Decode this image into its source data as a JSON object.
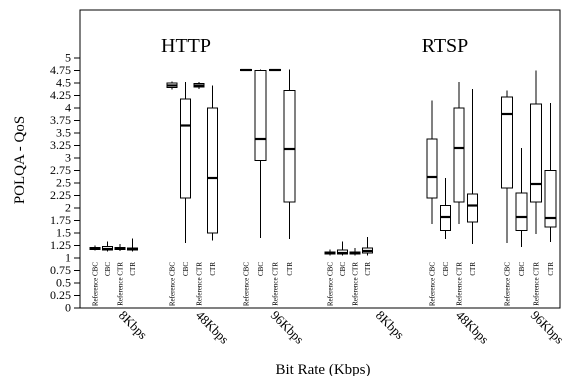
{
  "chart_data": {
    "type": "box",
    "ylabel": "POLQA - QoS",
    "xlabel": "Bit Rate (Kbps)",
    "ylim": [
      0,
      5
    ],
    "yticks": [
      "0",
      "0.25",
      "0.5",
      "0.75",
      "1",
      "1.25",
      "1.5",
      "1.75",
      "2",
      "2.25",
      "2.5",
      "2.75",
      "3",
      "3.25",
      "3.5",
      "3.75",
      "4",
      "4.25",
      "4.5",
      "4.75",
      "5"
    ],
    "panels": [
      "HTTP",
      "RTSP"
    ],
    "bitrate_labels": [
      "8Kbps",
      "48Kbps",
      "96Kbps"
    ],
    "series": [
      "Reference CBC",
      "CBC",
      "Reference CTR",
      "CTR"
    ],
    "boxes": [
      {
        "panel": "HTTP",
        "bitrate": "8Kbps",
        "series": "Reference CBC",
        "whisker_low": 1.15,
        "q1": 1.17,
        "median": 1.19,
        "q3": 1.21,
        "whisker_high": 1.25
      },
      {
        "panel": "HTTP",
        "bitrate": "8Kbps",
        "series": "CBC",
        "whisker_low": 1.13,
        "q1": 1.16,
        "median": 1.18,
        "q3": 1.23,
        "whisker_high": 1.33
      },
      {
        "panel": "HTTP",
        "bitrate": "8Kbps",
        "series": "Reference CTR",
        "whisker_low": 1.14,
        "q1": 1.17,
        "median": 1.19,
        "q3": 1.21,
        "whisker_high": 1.28
      },
      {
        "panel": "HTTP",
        "bitrate": "8Kbps",
        "series": "CTR",
        "whisker_low": 1.13,
        "q1": 1.16,
        "median": 1.18,
        "q3": 1.2,
        "whisker_high": 1.39
      },
      {
        "panel": "HTTP",
        "bitrate": "48Kbps",
        "series": "Reference CBC",
        "whisker_low": 4.37,
        "q1": 4.41,
        "median": 4.45,
        "q3": 4.5,
        "whisker_high": 4.53
      },
      {
        "panel": "HTTP",
        "bitrate": "48Kbps",
        "series": "CBC",
        "whisker_low": 1.3,
        "q1": 2.2,
        "median": 3.65,
        "q3": 4.18,
        "whisker_high": 4.52
      },
      {
        "panel": "HTTP",
        "bitrate": "48Kbps",
        "series": "Reference CTR",
        "whisker_low": 4.38,
        "q1": 4.42,
        "median": 4.45,
        "q3": 4.49,
        "whisker_high": 4.52
      },
      {
        "panel": "HTTP",
        "bitrate": "48Kbps",
        "series": "CTR",
        "whisker_low": 1.35,
        "q1": 1.5,
        "median": 2.6,
        "q3": 4.0,
        "whisker_high": 4.45
      },
      {
        "panel": "HTTP",
        "bitrate": "96Kbps",
        "series": "Reference CBC",
        "whisker_low": 4.76,
        "q1": 4.76,
        "median": 4.76,
        "q3": 4.77,
        "whisker_high": 4.77
      },
      {
        "panel": "HTTP",
        "bitrate": "96Kbps",
        "series": "CBC",
        "whisker_low": 1.4,
        "q1": 2.95,
        "median": 3.38,
        "q3": 4.75,
        "whisker_high": 4.77
      },
      {
        "panel": "HTTP",
        "bitrate": "96Kbps",
        "series": "Reference CTR",
        "whisker_low": 4.76,
        "q1": 4.76,
        "median": 4.76,
        "q3": 4.77,
        "whisker_high": 4.77
      },
      {
        "panel": "HTTP",
        "bitrate": "96Kbps",
        "series": "CTR",
        "whisker_low": 1.38,
        "q1": 2.12,
        "median": 3.18,
        "q3": 4.35,
        "whisker_high": 4.77
      },
      {
        "panel": "RTSP",
        "bitrate": "8Kbps",
        "series": "Reference CBC",
        "whisker_low": 1.05,
        "q1": 1.08,
        "median": 1.1,
        "q3": 1.12,
        "whisker_high": 1.17
      },
      {
        "panel": "RTSP",
        "bitrate": "8Kbps",
        "series": "CBC",
        "whisker_low": 1.05,
        "q1": 1.08,
        "median": 1.1,
        "q3": 1.16,
        "whisker_high": 1.33
      },
      {
        "panel": "RTSP",
        "bitrate": "8Kbps",
        "series": "Reference CTR",
        "whisker_low": 1.05,
        "q1": 1.08,
        "median": 1.1,
        "q3": 1.12,
        "whisker_high": 1.2
      },
      {
        "panel": "RTSP",
        "bitrate": "8Kbps",
        "series": "CTR",
        "whisker_low": 1.05,
        "q1": 1.1,
        "median": 1.14,
        "q3": 1.2,
        "whisker_high": 1.42
      },
      {
        "panel": "RTSP",
        "bitrate": "48Kbps",
        "series": "Reference CBC",
        "whisker_low": 1.68,
        "q1": 2.2,
        "median": 2.62,
        "q3": 3.38,
        "whisker_high": 4.15
      },
      {
        "panel": "RTSP",
        "bitrate": "48Kbps",
        "series": "CBC",
        "whisker_low": 1.38,
        "q1": 1.55,
        "median": 1.82,
        "q3": 2.05,
        "whisker_high": 2.6
      },
      {
        "panel": "RTSP",
        "bitrate": "48Kbps",
        "series": "Reference CTR",
        "whisker_low": 1.68,
        "q1": 2.12,
        "median": 3.2,
        "q3": 4.0,
        "whisker_high": 4.52
      },
      {
        "panel": "RTSP",
        "bitrate": "48Kbps",
        "series": "CTR",
        "whisker_low": 1.28,
        "q1": 1.72,
        "median": 2.05,
        "q3": 2.28,
        "whisker_high": 4.38
      },
      {
        "panel": "RTSP",
        "bitrate": "96Kbps",
        "series": "Reference CBC",
        "whisker_low": 1.3,
        "q1": 2.4,
        "median": 3.88,
        "q3": 4.22,
        "whisker_high": 4.35
      },
      {
        "panel": "RTSP",
        "bitrate": "96Kbps",
        "series": "CBC",
        "whisker_low": 1.22,
        "q1": 1.55,
        "median": 1.82,
        "q3": 2.3,
        "whisker_high": 3.2
      },
      {
        "panel": "RTSP",
        "bitrate": "96Kbps",
        "series": "Reference CTR",
        "whisker_low": 1.48,
        "q1": 2.12,
        "median": 2.48,
        "q3": 4.08,
        "whisker_high": 4.75
      },
      {
        "panel": "RTSP",
        "bitrate": "96Kbps",
        "series": "CTR",
        "whisker_low": 1.32,
        "q1": 1.62,
        "median": 1.8,
        "q3": 2.75,
        "whisker_high": 4.1
      }
    ]
  }
}
